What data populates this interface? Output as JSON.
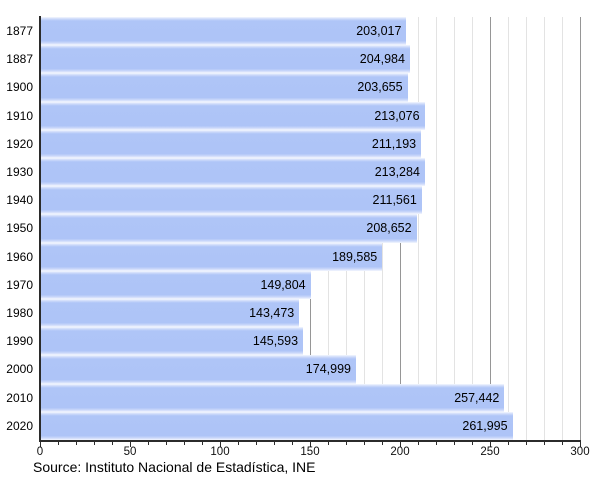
{
  "chart_data": {
    "type": "bar",
    "orientation": "horizontal",
    "title": "",
    "xlabel": "",
    "ylabel": "",
    "categories": [
      "1877",
      "1887",
      "1900",
      "1910",
      "1920",
      "1930",
      "1940",
      "1950",
      "1960",
      "1970",
      "1980",
      "1990",
      "2000",
      "2010",
      "2020"
    ],
    "values": [
      203017,
      204984,
      203655,
      213076,
      211193,
      213284,
      211561,
      208652,
      189585,
      149804,
      143473,
      145593,
      174999,
      257442,
      261995
    ],
    "value_labels": [
      "203,017",
      "204,984",
      "203,655",
      "213,076",
      "211,193",
      "213,284",
      "211,561",
      "208,652",
      "189,585",
      "149,804",
      "143,473",
      "145,593",
      "174,999",
      "257,442",
      "261,995"
    ],
    "xlim": [
      0,
      300
    ],
    "x_ticks": [
      0,
      50,
      100,
      150,
      200,
      250,
      300
    ],
    "x_tick_labels": [
      "0",
      "50",
      "100",
      "150",
      "200",
      "250",
      "300"
    ],
    "x_minor_step": 10,
    "x_major_step": 50,
    "x_axis_unit": "thousands",
    "grid": "vertical minor every 10, darker major every 50",
    "legend": "none",
    "source": "Source: Instituto Nacional de Estadística, INE",
    "colors": {
      "bar_fill": "#aec4f7",
      "bar_edge_fade": "#ccd9fa",
      "minor_gridline": "#e3e3e3",
      "major_gridline": "#969696",
      "axis": "#2b2b2b",
      "text": "#000000",
      "background": "#ffffff"
    }
  }
}
